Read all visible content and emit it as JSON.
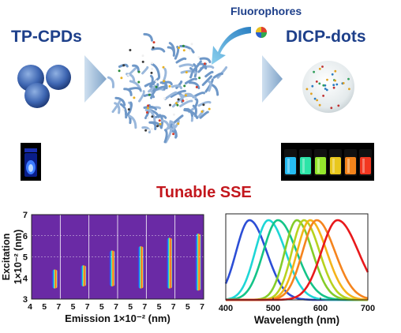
{
  "labels": {
    "fluorophores": "Fluorophores",
    "tp_cpds": "TP-CPDs",
    "dicp_dots": "DICP-dots",
    "tunable_sse": "Tunable SSE"
  },
  "colors": {
    "title_blue": "#1d3f8a",
    "title_red": "#c3171d",
    "arrow": "#9bb8d6",
    "map_background": "#6a2aa5"
  },
  "vial_colors": [
    "#28c6ff",
    "#2ef0b0",
    "#9cf22e",
    "#f5d21d",
    "#ff8a1c",
    "#ff3a22"
  ],
  "chart_data": [
    {
      "type": "heatmap",
      "ylabel": [
        "Excitation",
        "1×10⁻² (nm)"
      ],
      "xlabel": "Emission 1×10⁻² (nm)",
      "x_ticks": [
        "4",
        "5",
        "7",
        "5",
        "7",
        "5",
        "7",
        "5",
        "7",
        "5",
        "7",
        "5",
        "7"
      ],
      "y_ticks": [
        "3",
        "4",
        "5",
        "6",
        "7"
      ],
      "ylim": [
        3,
        7
      ],
      "panels": [
        {
          "excitation_peak": 4.0,
          "excitation_range": [
            3.5,
            4.4
          ]
        },
        {
          "excitation_peak": 4.0,
          "excitation_range": [
            3.6,
            4.6
          ]
        },
        {
          "excitation_peak": 4.5,
          "excitation_range": [
            3.6,
            5.3
          ]
        },
        {
          "excitation_peak": 4.6,
          "excitation_range": [
            3.5,
            5.5
          ]
        },
        {
          "excitation_peak": 5.1,
          "excitation_range": [
            3.5,
            5.9
          ]
        },
        {
          "excitation_peak": 5.4,
          "excitation_range": [
            3.4,
            6.1
          ]
        }
      ]
    },
    {
      "type": "line",
      "xlabel": "Wavelength (nm)",
      "ylabel": "",
      "x_ticks": [
        "400",
        "500",
        "600",
        "700"
      ],
      "xlim": [
        400,
        700
      ],
      "series": [
        {
          "color": "#2c4ed6",
          "peak": 450,
          "width": 33
        },
        {
          "color": "#1ed6d6",
          "peak": 490,
          "width": 33
        },
        {
          "color": "#14c488",
          "peak": 510,
          "width": 36
        },
        {
          "color": "#84cc2a",
          "peak": 550,
          "width": 30
        },
        {
          "color": "#b8d21e",
          "peak": 565,
          "width": 30
        },
        {
          "color": "#f4b41a",
          "peak": 578,
          "width": 32
        },
        {
          "color": "#f5841e",
          "peak": 592,
          "width": 35
        },
        {
          "color": "#e8191b",
          "peak": 636,
          "width": 40
        }
      ]
    }
  ]
}
